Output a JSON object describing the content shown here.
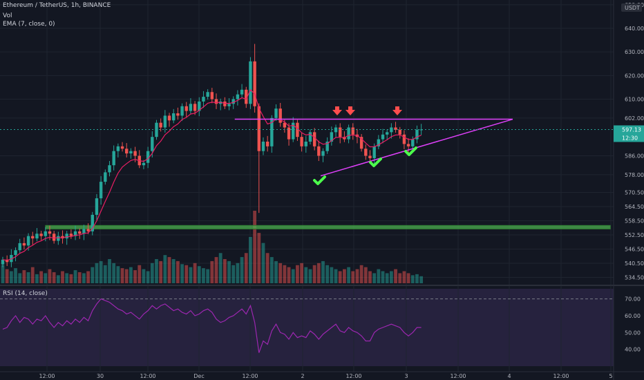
{
  "legend": {
    "symbol": "Ethereum / TetherUS, 1h, BINANCE",
    "vol": "Vol",
    "ema": "EMA (7, close, 0)",
    "rsi": "RSI (14, close)"
  },
  "colors": {
    "background": "#131722",
    "up": "#26a69a",
    "down": "#ef5350",
    "ema": "#e91e63",
    "rsi": "#9c27b0",
    "trendline": "#e040fb",
    "support_zone": "#4caf50",
    "check": "#4cff4c",
    "arrow": "#ff4d4d"
  },
  "price_axis": {
    "ticks": [
      "650.00",
      "640.00",
      "630.00",
      "620.00",
      "610.00",
      "602.00",
      "597.13",
      "586.00",
      "578.00",
      "570.50",
      "564.50",
      "558.50",
      "552.50",
      "546.50",
      "540.50",
      "534.50"
    ],
    "currency_badge": "USDT",
    "last_price_tag": "597.13",
    "countdown_tag": "12:30"
  },
  "rsi_axis": {
    "ticks": [
      "70.00",
      "60.00",
      "50.00",
      "40.00"
    ],
    "bands": [
      70,
      30
    ]
  },
  "time_axis": {
    "ticks": [
      "12:00",
      "30",
      "12:00",
      "Dec",
      "12:00",
      "2",
      "12:00",
      "3",
      "12:00",
      "4",
      "12:00",
      "5"
    ]
  },
  "chart_data": {
    "type": "candlestick",
    "series": [
      {
        "name": "ETHUSDT",
        "open": [
          540,
          542,
          541,
          544,
          546,
          549,
          548,
          552,
          551,
          553,
          552,
          554,
          553,
          550,
          552,
          551,
          553,
          552,
          554,
          553,
          555,
          554,
          561,
          568,
          575,
          579,
          582,
          588,
          590,
          589,
          587,
          588,
          586,
          582,
          583,
          588,
          594,
          600,
          598,
          603,
          601,
          604,
          603,
          607,
          605,
          608,
          605,
          609,
          611,
          613,
          610,
          608,
          609,
          607,
          608,
          610,
          612,
          614,
          608,
          626,
          607,
          588,
          592,
          590,
          602,
          606,
          600,
          598,
          593,
          600,
          594,
          590,
          592,
          596,
          590,
          586,
          588,
          592,
          596,
          598,
          594,
          593,
          598,
          595,
          594,
          589,
          586,
          585,
          590,
          593,
          595,
          596,
          598,
          597,
          595,
          591,
          590,
          593,
          597
        ],
        "close": [
          542,
          541,
          544,
          546,
          549,
          548,
          552,
          551,
          553,
          552,
          554,
          553,
          550,
          552,
          551,
          553,
          552,
          554,
          553,
          555,
          554,
          561,
          568,
          575,
          579,
          582,
          588,
          590,
          589,
          587,
          588,
          586,
          582,
          583,
          588,
          594,
          600,
          598,
          603,
          601,
          604,
          603,
          607,
          605,
          608,
          605,
          609,
          611,
          613,
          610,
          608,
          609,
          607,
          608,
          610,
          612,
          614,
          608,
          626,
          607,
          588,
          592,
          590,
          602,
          606,
          600,
          598,
          593,
          600,
          594,
          590,
          592,
          596,
          590,
          586,
          588,
          592,
          596,
          598,
          594,
          593,
          598,
          595,
          594,
          589,
          586,
          585,
          590,
          593,
          595,
          596,
          598,
          597,
          595,
          591,
          590,
          593,
          597,
          597.13
        ],
        "volume": [
          18,
          14,
          12,
          15,
          10,
          13,
          11,
          16,
          9,
          12,
          10,
          14,
          11,
          8,
          12,
          10,
          9,
          13,
          11,
          10,
          12,
          16,
          20,
          22,
          18,
          24,
          20,
          17,
          15,
          14,
          16,
          13,
          18,
          14,
          12,
          20,
          24,
          22,
          28,
          26,
          24,
          22,
          19,
          18,
          16,
          20,
          17,
          15,
          14,
          22,
          26,
          30,
          24,
          22,
          18,
          20,
          26,
          30,
          46,
          72,
          50,
          40,
          30,
          26,
          22,
          20,
          18,
          16,
          14,
          18,
          20,
          16,
          14,
          18,
          20,
          22,
          18,
          16,
          14,
          12,
          14,
          16,
          12,
          14,
          18,
          16,
          12,
          10,
          14,
          12,
          10,
          12,
          14,
          10,
          12,
          10,
          8,
          9,
          7
        ]
      },
      {
        "name": "EMA (7, close, 0)"
      },
      {
        "name": "RSI (14, close)",
        "values": [
          52,
          53,
          57,
          60,
          56,
          59,
          58,
          55,
          58,
          57,
          60,
          56,
          53,
          56,
          54,
          57,
          55,
          58,
          56,
          59,
          57,
          63,
          67,
          70,
          69,
          68,
          66,
          64,
          63,
          61,
          62,
          60,
          58,
          61,
          63,
          66,
          64,
          66,
          67,
          65,
          63,
          64,
          62,
          61,
          63,
          60,
          61,
          63,
          64,
          62,
          58,
          56,
          57,
          59,
          60,
          62,
          64,
          61,
          66,
          56,
          38,
          45,
          43,
          51,
          55,
          50,
          49,
          46,
          50,
          47,
          48,
          47,
          51,
          49,
          46,
          49,
          51,
          53,
          55,
          51,
          50,
          53,
          51,
          50,
          48,
          45,
          45,
          50,
          52,
          53,
          54,
          55,
          54,
          53,
          50,
          48,
          50,
          53,
          53
        ]
      }
    ],
    "ylim": [
      532,
      652
    ],
    "rsi_ylim": [
      30,
      76
    ],
    "annotations": [
      {
        "type": "resistance_line",
        "price": 601.5,
        "from_bar": 54,
        "to_bar": 132
      },
      {
        "type": "rising_trendline",
        "from": {
          "bar": 64,
          "price": 577.5
        },
        "to": {
          "bar": 132,
          "price": 601.5
        }
      },
      {
        "type": "support_zone",
        "from": 556.5,
        "to": 555,
        "from_bar": 10,
        "to_bar": 118
      },
      {
        "type": "arrow_down",
        "bars": [
          64,
          69,
          80
        ],
        "price": 604
      },
      {
        "type": "checkmark",
        "bars": [
          62,
          74,
          84
        ],
        "price": [
          572,
          580,
          584
        ]
      }
    ]
  }
}
